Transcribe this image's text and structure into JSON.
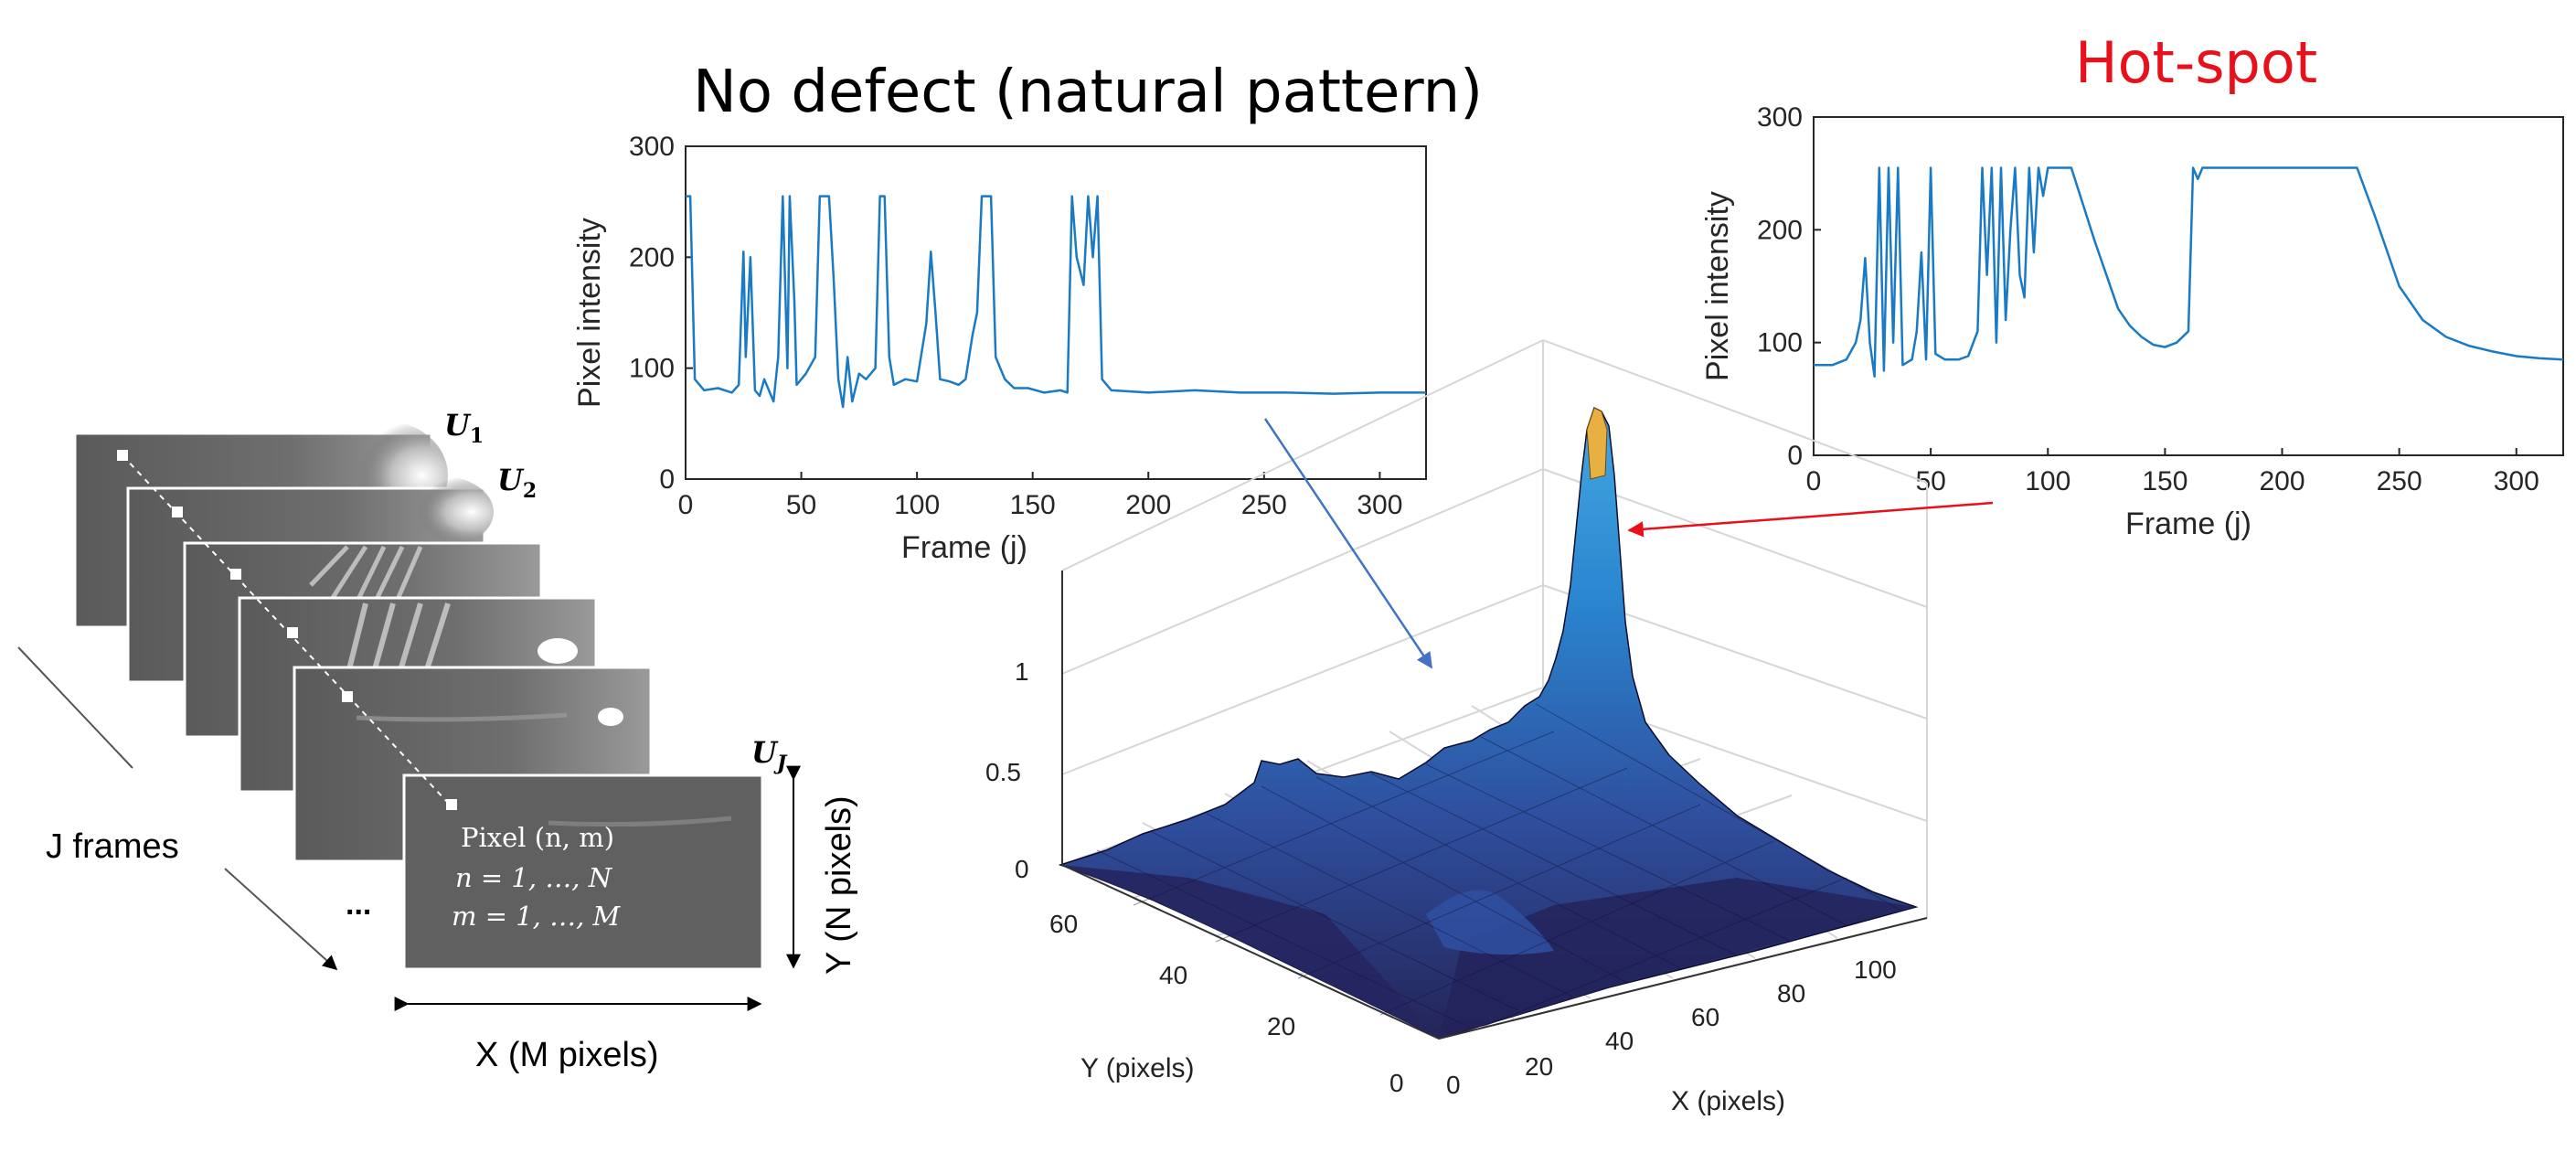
{
  "labels": {
    "normal_title": "No defect (natural pattern)",
    "hotspot_title": "Hot-spot",
    "j_frames": "J frames",
    "x_axis_stack": "X (M pixels)",
    "y_axis_stack": "Y (N pixels)",
    "ellipsis": "...",
    "u1": "U",
    "u1_sub": "1",
    "u2": "U",
    "u2_sub": "2",
    "uj": "U",
    "uj_sub": "J",
    "pixel_line1": "Pixel (n, m)",
    "pixel_line2": "n = 1, …, N",
    "pixel_line3": "m = 1, …, M"
  },
  "colors": {
    "series": "#1a7ac4",
    "hotspot_title": "#e8101a",
    "blue_arrow": "#4472c4",
    "red_arrow": "#e8101a",
    "surface_low": "#2a2a66",
    "surface_mid": "#2b78c8",
    "surface_peak": "#e8b040",
    "frame": "#555555"
  },
  "chart_data": [
    {
      "id": "normal",
      "type": "line",
      "title": "No defect (natural pattern)",
      "xlabel": "Frame (j)",
      "ylabel": "Pixel intensity",
      "xlim": [
        0,
        320
      ],
      "ylim": [
        0,
        300
      ],
      "xticks": [
        "0",
        "50",
        "100",
        "150",
        "200",
        "250",
        "300"
      ],
      "yticks": [
        "0",
        "100",
        "200",
        "300"
      ],
      "grid": false,
      "points": [
        [
          0,
          255
        ],
        [
          2,
          255
        ],
        [
          4,
          90
        ],
        [
          8,
          80
        ],
        [
          14,
          82
        ],
        [
          20,
          78
        ],
        [
          23,
          85
        ],
        [
          25,
          205
        ],
        [
          26,
          110
        ],
        [
          28,
          200
        ],
        [
          30,
          80
        ],
        [
          32,
          75
        ],
        [
          34,
          90
        ],
        [
          36,
          80
        ],
        [
          38,
          70
        ],
        [
          40,
          110
        ],
        [
          42,
          255
        ],
        [
          44,
          100
        ],
        [
          45,
          255
        ],
        [
          47,
          160
        ],
        [
          48,
          85
        ],
        [
          52,
          95
        ],
        [
          56,
          110
        ],
        [
          58,
          255
        ],
        [
          62,
          255
        ],
        [
          64,
          180
        ],
        [
          66,
          90
        ],
        [
          68,
          65
        ],
        [
          70,
          110
        ],
        [
          72,
          70
        ],
        [
          75,
          95
        ],
        [
          78,
          90
        ],
        [
          82,
          100
        ],
        [
          84,
          255
        ],
        [
          86,
          255
        ],
        [
          88,
          110
        ],
        [
          90,
          85
        ],
        [
          95,
          90
        ],
        [
          100,
          88
        ],
        [
          104,
          140
        ],
        [
          106,
          205
        ],
        [
          108,
          150
        ],
        [
          110,
          90
        ],
        [
          114,
          88
        ],
        [
          118,
          85
        ],
        [
          121,
          90
        ],
        [
          124,
          130
        ],
        [
          126,
          150
        ],
        [
          128,
          255
        ],
        [
          132,
          255
        ],
        [
          134,
          110
        ],
        [
          138,
          90
        ],
        [
          142,
          82
        ],
        [
          148,
          82
        ],
        [
          155,
          78
        ],
        [
          162,
          80
        ],
        [
          165,
          78
        ],
        [
          167,
          255
        ],
        [
          169,
          200
        ],
        [
          172,
          175
        ],
        [
          174,
          255
        ],
        [
          176,
          200
        ],
        [
          178,
          255
        ],
        [
          180,
          90
        ],
        [
          184,
          80
        ],
        [
          200,
          78
        ],
        [
          220,
          80
        ],
        [
          240,
          78
        ],
        [
          260,
          78
        ],
        [
          280,
          77
        ],
        [
          300,
          78
        ],
        [
          320,
          78
        ]
      ]
    },
    {
      "id": "hotspot",
      "type": "line",
      "title": "Hot-spot",
      "xlabel": "Frame (j)",
      "ylabel": "Pixel intensity",
      "xlim": [
        0,
        320
      ],
      "ylim": [
        0,
        300
      ],
      "xticks": [
        "0",
        "50",
        "100",
        "150",
        "200",
        "250",
        "300"
      ],
      "yticks": [
        "0",
        "100",
        "200",
        "300"
      ],
      "grid": false,
      "points": [
        [
          0,
          80
        ],
        [
          8,
          80
        ],
        [
          14,
          85
        ],
        [
          18,
          100
        ],
        [
          20,
          120
        ],
        [
          22,
          175
        ],
        [
          24,
          100
        ],
        [
          26,
          70
        ],
        [
          28,
          255
        ],
        [
          30,
          75
        ],
        [
          32,
          255
        ],
        [
          34,
          100
        ],
        [
          36,
          255
        ],
        [
          38,
          80
        ],
        [
          42,
          85
        ],
        [
          44,
          110
        ],
        [
          46,
          180
        ],
        [
          48,
          85
        ],
        [
          50,
          255
        ],
        [
          52,
          90
        ],
        [
          56,
          85
        ],
        [
          62,
          85
        ],
        [
          66,
          88
        ],
        [
          70,
          110
        ],
        [
          72,
          255
        ],
        [
          74,
          160
        ],
        [
          76,
          255
        ],
        [
          78,
          100
        ],
        [
          80,
          255
        ],
        [
          82,
          120
        ],
        [
          84,
          200
        ],
        [
          86,
          255
        ],
        [
          88,
          160
        ],
        [
          90,
          140
        ],
        [
          92,
          255
        ],
        [
          94,
          180
        ],
        [
          96,
          255
        ],
        [
          98,
          230
        ],
        [
          100,
          255
        ],
        [
          110,
          255
        ],
        [
          120,
          190
        ],
        [
          130,
          130
        ],
        [
          135,
          115
        ],
        [
          140,
          105
        ],
        [
          145,
          98
        ],
        [
          150,
          96
        ],
        [
          155,
          100
        ],
        [
          160,
          110
        ],
        [
          162,
          255
        ],
        [
          164,
          245
        ],
        [
          166,
          255
        ],
        [
          168,
          255
        ],
        [
          200,
          255
        ],
        [
          232,
          255
        ],
        [
          240,
          210
        ],
        [
          250,
          150
        ],
        [
          260,
          120
        ],
        [
          270,
          105
        ],
        [
          280,
          97
        ],
        [
          290,
          92
        ],
        [
          300,
          88
        ],
        [
          310,
          86
        ],
        [
          320,
          85
        ]
      ]
    },
    {
      "id": "surface",
      "type": "surface3d",
      "xlabel": "X (pixels)",
      "ylabel": "Y (pixels)",
      "xlim": [
        0,
        120
      ],
      "ylim": [
        0,
        70
      ],
      "zlim": [
        0,
        1.4
      ],
      "xticks": [
        "0",
        "20",
        "40",
        "60",
        "80",
        "100"
      ],
      "yticks": [
        "0",
        "20",
        "40",
        "60"
      ],
      "zticks": [
        "0",
        "0.5",
        "1"
      ],
      "grid": true,
      "peak": {
        "x": 105,
        "y": 60,
        "z": 1.3
      }
    }
  ]
}
